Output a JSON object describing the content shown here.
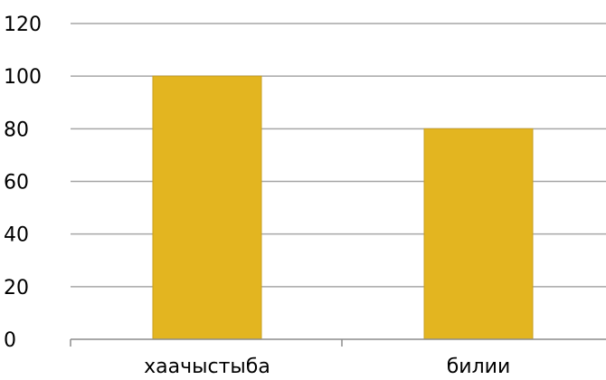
{
  "chart_data": {
    "type": "bar",
    "categories": [
      "хаачыстыба",
      "билии"
    ],
    "values": [
      100,
      80
    ],
    "title": "",
    "xlabel": "",
    "ylabel": "",
    "ylim": [
      0,
      120
    ],
    "yticks": [
      0,
      20,
      40,
      60,
      80,
      100,
      120
    ],
    "grid": true,
    "legend": "none"
  },
  "colors": {
    "bar": "#E3B520",
    "bar_edge": "#C9A020",
    "grid": "#A6A6A6",
    "axis": "#8C8C8C"
  }
}
